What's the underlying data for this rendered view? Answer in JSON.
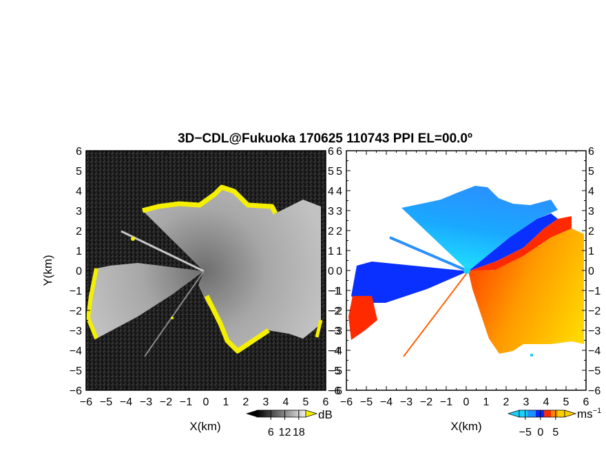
{
  "title": "3D−CDL@Fukuoka 170625 110743 PPI EL=00.0º",
  "chart_data": [
    {
      "type": "heatmap",
      "panel": "left",
      "quantity": "reflectivity",
      "xlabel": "X(km)",
      "ylabel": "Y(km)",
      "xlim": [
        -6,
        6
      ],
      "ylim": [
        -6,
        6
      ],
      "xticks": [
        -6,
        -5,
        -4,
        -3,
        -2,
        -1,
        0,
        1,
        2,
        3,
        4,
        5,
        6
      ],
      "yticks": [
        -6,
        -5,
        -4,
        -3,
        -2,
        -1,
        0,
        1,
        2,
        3,
        4,
        5,
        6
      ],
      "colorbar": {
        "unit": "dB",
        "ticks": [
          6,
          12,
          18
        ]
      },
      "colors": {
        "background": "#1a1a1a",
        "echo": "#aaaaaa",
        "edge": "#f5f000"
      }
    },
    {
      "type": "heatmap",
      "panel": "right",
      "quantity": "radial velocity",
      "xlabel": "X(km)",
      "ylabel": "",
      "xlim": [
        -6,
        6
      ],
      "ylim": [
        -6,
        6
      ],
      "xticks": [
        -6,
        -5,
        -4,
        -3,
        -2,
        -1,
        0,
        1,
        2,
        3,
        4,
        5,
        6
      ],
      "yticks": [
        -6,
        -5,
        -4,
        -3,
        -2,
        -1,
        0,
        1,
        2,
        3,
        4,
        5,
        6
      ],
      "colorbar": {
        "unit": "ms",
        "unit_exp": "−1",
        "ticks": [
          -5,
          0,
          5
        ]
      },
      "colors": {
        "negative_light": "#19d2ff",
        "negative": "#1e90ff",
        "negative_dark": "#0028ff",
        "zero": "#ff2a00",
        "positive": "#ff8c00",
        "positive_light": "#ffd000"
      }
    }
  ]
}
